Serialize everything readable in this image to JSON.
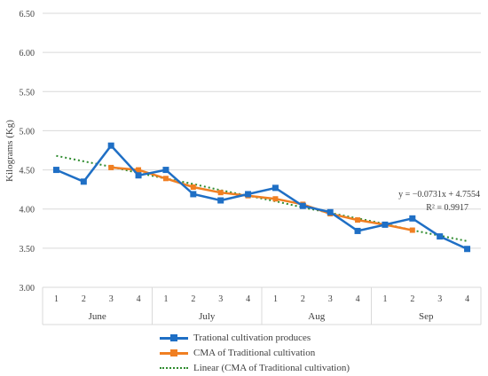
{
  "chart_data": {
    "type": "line",
    "ylabel": "Kilograms (Kg)",
    "ylim": [
      3.0,
      6.5
    ],
    "y_ticks": [
      "3.00",
      "3.50",
      "4.00",
      "4.50",
      "5.00",
      "5.50",
      "6.00",
      "6.50"
    ],
    "grid": true,
    "legend_position": "bottom",
    "x": [
      "1",
      "2",
      "3",
      "4",
      "1",
      "2",
      "3",
      "4",
      "1",
      "2",
      "3",
      "4",
      "1",
      "2",
      "3",
      "4"
    ],
    "groups": [
      {
        "label": "June",
        "count": 4
      },
      {
        "label": "July",
        "count": 4
      },
      {
        "label": "Aug",
        "count": 4
      },
      {
        "label": "Sep",
        "count": 4
      }
    ],
    "series": [
      {
        "name": "Trational cultivation produces",
        "color": "#1f6fc5",
        "marker": "square",
        "values": [
          4.5,
          4.35,
          4.81,
          4.43,
          4.5,
          4.19,
          4.11,
          4.19,
          4.27,
          4.04,
          3.96,
          3.72,
          3.8,
          3.88,
          3.65,
          3.49
        ]
      },
      {
        "name": "CMA of Traditional cultivation",
        "color": "#f07f22",
        "marker": "square",
        "values": [
          null,
          null,
          4.53,
          4.5,
          4.39,
          4.28,
          4.21,
          4.17,
          4.13,
          4.06,
          3.94,
          3.86,
          3.8,
          3.73,
          null,
          null
        ]
      },
      {
        "name": "Linear (CMA of Traditional cultivation)",
        "color": "#2e8b2e",
        "style": "dotted",
        "values": [
          4.68,
          4.61,
          4.54,
          4.46,
          4.39,
          4.32,
          4.24,
          4.17,
          4.1,
          4.02,
          3.95,
          3.88,
          3.81,
          3.73,
          3.66,
          3.59
        ]
      }
    ],
    "annotations": [
      "y = −0.0731x + 4.7554",
      "R² = 0.9917"
    ]
  }
}
